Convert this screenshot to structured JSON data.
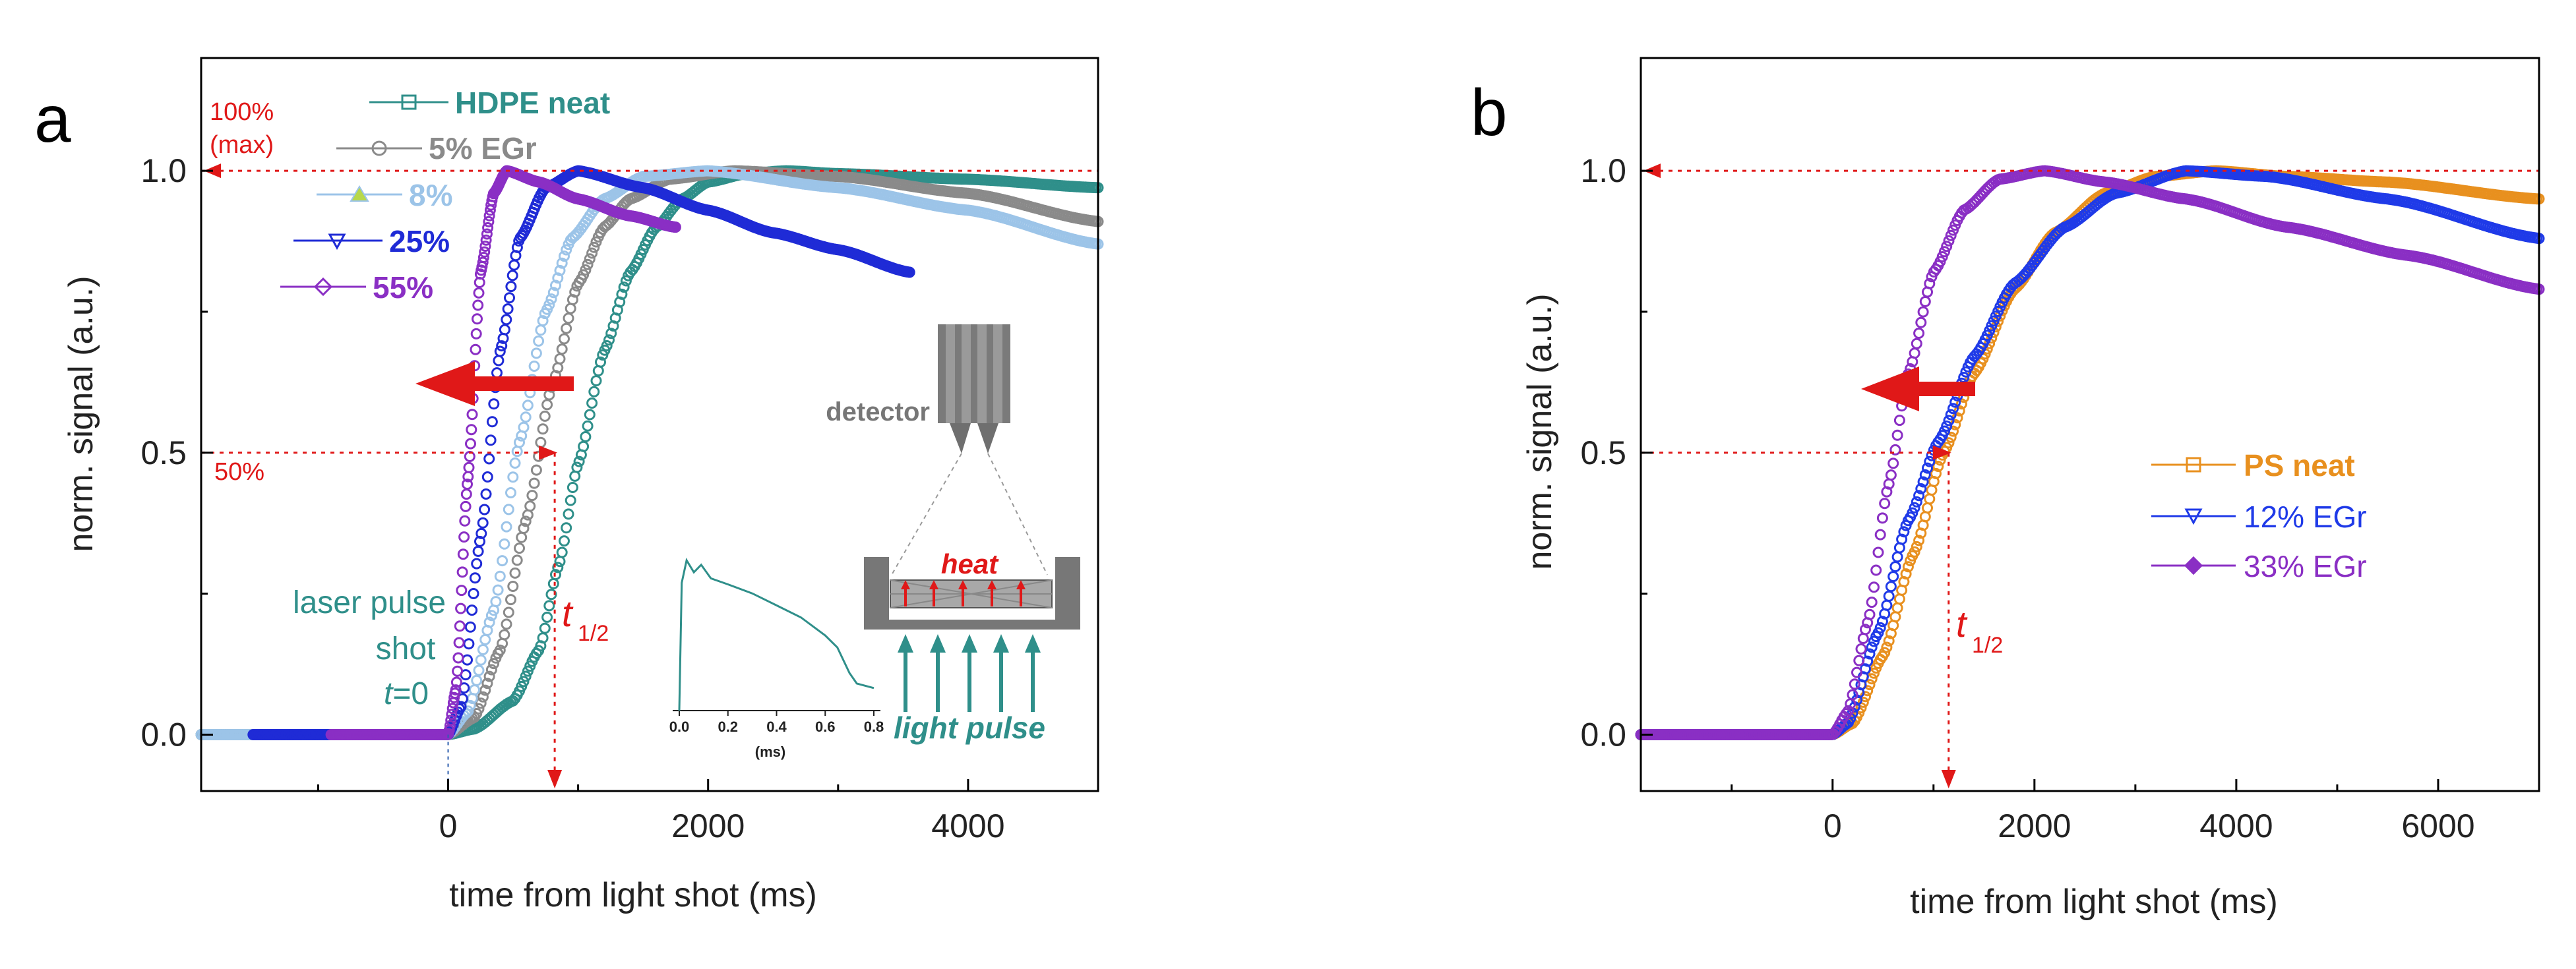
{
  "figure": {
    "panel_a_letter": "a",
    "panel_b_letter": "b"
  },
  "colors": {
    "hdpe_neat": "#2f8f8a",
    "egr5": "#8a8a8a",
    "egr8": "#9cc4e8",
    "egr25": "#1f2bd6",
    "egr55": "#8a2fc4",
    "ps_neat": "#e8901f",
    "egr12": "#1f3ae8",
    "egr33": "#8a2fc4",
    "annotation_red": "#e01818",
    "laser_text": "#2f8f8a",
    "egr8_marker": "#b8d84a"
  },
  "chart_data": [
    {
      "panel": "a",
      "type": "scatter",
      "xlabel": "time from light shot (ms)",
      "ylabel": "norm. signal (a.u.)",
      "xlim": [
        -1900,
        5000
      ],
      "ylim": [
        -0.1,
        1.2
      ],
      "xticks": [
        0,
        2000,
        4000
      ],
      "xtick_labels": [
        "0",
        "2000",
        "4000"
      ],
      "yticks": [
        0.0,
        0.5,
        1.0
      ],
      "ytick_labels": [
        "0.0",
        "0.5",
        "1.0"
      ],
      "legend": [
        {
          "label": "HDPE neat",
          "marker": "square",
          "color_key": "hdpe_neat"
        },
        {
          "label": "5% EGr",
          "marker": "circle",
          "color_key": "egr5"
        },
        {
          "label": "8%",
          "marker": "triangle-up",
          "color_key": "egr8"
        },
        {
          "label": "25%",
          "marker": "triangle-down",
          "color_key": "egr25"
        },
        {
          "label": "55%",
          "marker": "diamond",
          "color_key": "egr55"
        }
      ],
      "series": [
        {
          "name": "HDPE neat",
          "color_key": "hdpe_neat",
          "x_start": -1900,
          "x_end": 5000,
          "points": [
            [
              -1900,
              0
            ],
            [
              0,
              0
            ],
            [
              200,
              0.01
            ],
            [
              500,
              0.06
            ],
            [
              700,
              0.15
            ],
            [
              850,
              0.3
            ],
            [
              1000,
              0.48
            ],
            [
              1200,
              0.68
            ],
            [
              1400,
              0.82
            ],
            [
              1600,
              0.9
            ],
            [
              1800,
              0.95
            ],
            [
              2000,
              0.98
            ],
            [
              2300,
              0.995
            ],
            [
              2600,
              1.0
            ],
            [
              3000,
              0.995
            ],
            [
              4000,
              0.985
            ],
            [
              5000,
              0.97
            ]
          ]
        },
        {
          "name": "5% EGr",
          "color_key": "egr5",
          "x_start": -1900,
          "x_end": 5000,
          "points": [
            [
              -1900,
              0
            ],
            [
              0,
              0
            ],
            [
              200,
              0.03
            ],
            [
              400,
              0.15
            ],
            [
              600,
              0.38
            ],
            [
              800,
              0.62
            ],
            [
              1000,
              0.8
            ],
            [
              1200,
              0.9
            ],
            [
              1400,
              0.95
            ],
            [
              1700,
              0.985
            ],
            [
              2200,
              1.0
            ],
            [
              3000,
              0.99
            ],
            [
              4000,
              0.96
            ],
            [
              5000,
              0.91
            ]
          ]
        },
        {
          "name": "8%",
          "color_key": "egr8",
          "x_start": -1900,
          "x_end": 5000,
          "points": [
            [
              -1900,
              0
            ],
            [
              0,
              0
            ],
            [
              150,
              0.04
            ],
            [
              350,
              0.22
            ],
            [
              550,
              0.52
            ],
            [
              750,
              0.75
            ],
            [
              950,
              0.88
            ],
            [
              1200,
              0.95
            ],
            [
              1500,
              0.99
            ],
            [
              2000,
              1.0
            ],
            [
              3000,
              0.97
            ],
            [
              4000,
              0.93
            ],
            [
              5000,
              0.87
            ]
          ]
        },
        {
          "name": "25%",
          "color_key": "egr25",
          "x_start": -1500,
          "x_end": 3550,
          "points": [
            [
              -1500,
              0
            ],
            [
              0,
              0
            ],
            [
              100,
              0.05
            ],
            [
              250,
              0.35
            ],
            [
              400,
              0.68
            ],
            [
              550,
              0.88
            ],
            [
              750,
              0.97
            ],
            [
              1000,
              1.0
            ],
            [
              1500,
              0.97
            ],
            [
              2000,
              0.93
            ],
            [
              2500,
              0.89
            ],
            [
              3000,
              0.86
            ],
            [
              3550,
              0.82
            ]
          ]
        },
        {
          "name": "55%",
          "color_key": "egr55",
          "x_start": -900,
          "x_end": 1750,
          "points": [
            [
              -900,
              0
            ],
            [
              0,
              0
            ],
            [
              60,
              0.08
            ],
            [
              150,
              0.45
            ],
            [
              250,
              0.82
            ],
            [
              350,
              0.96
            ],
            [
              450,
              1.0
            ],
            [
              700,
              0.98
            ],
            [
              1000,
              0.95
            ],
            [
              1400,
              0.92
            ],
            [
              1750,
              0.9
            ]
          ]
        }
      ],
      "annotations": {
        "pct100_line1": "100%",
        "pct100_line2": "(max)",
        "pct50": "50%",
        "laser_line1": "laser pulse",
        "laser_line2": "shot",
        "laser_t": "t",
        "laser_eq": "=0",
        "t_half_main": "t",
        "t_half_sub": "1/2",
        "t_half_x": 820
      },
      "inset_plot": {
        "type": "line",
        "xlabel": "(ms)",
        "xticks": [
          "0.0",
          "0.2",
          "0.4",
          "0.6",
          "0.8"
        ],
        "points": [
          [
            0.0,
            0.0
          ],
          [
            0.01,
            0.85
          ],
          [
            0.03,
            1.0
          ],
          [
            0.06,
            0.92
          ],
          [
            0.09,
            0.97
          ],
          [
            0.13,
            0.88
          ],
          [
            0.2,
            0.84
          ],
          [
            0.3,
            0.78
          ],
          [
            0.4,
            0.7
          ],
          [
            0.5,
            0.62
          ],
          [
            0.6,
            0.5
          ],
          [
            0.65,
            0.42
          ],
          [
            0.7,
            0.25
          ],
          [
            0.73,
            0.18
          ],
          [
            0.8,
            0.15
          ]
        ]
      },
      "schematic": {
        "detector_label": "detector",
        "heat_label": "heat",
        "light_pulse_label": "light pulse"
      }
    },
    {
      "panel": "b",
      "type": "scatter",
      "xlabel": "time from light shot (ms)",
      "ylabel": "norm. signal (a.u.)",
      "xlim": [
        -1900,
        7000
      ],
      "ylim": [
        -0.1,
        1.2
      ],
      "xticks": [
        0,
        2000,
        4000,
        6000
      ],
      "xtick_labels": [
        "0",
        "2000",
        "4000",
        "6000"
      ],
      "yticks": [
        0.0,
        0.5,
        1.0
      ],
      "ytick_labels": [
        "0.0",
        "0.5",
        "1.0"
      ],
      "legend": [
        {
          "label": "PS neat",
          "marker": "square",
          "color_key": "ps_neat"
        },
        {
          "label": "12% EGr",
          "marker": "triangle-down",
          "color_key": "egr12"
        },
        {
          "label": "33% EGr",
          "marker": "diamond",
          "color_key": "egr33"
        }
      ],
      "series": [
        {
          "name": "PS neat",
          "color_key": "ps_neat",
          "x_start": -1900,
          "x_end": 7000,
          "points": [
            [
              -1900,
              0
            ],
            [
              0,
              0
            ],
            [
              200,
              0.02
            ],
            [
              500,
              0.14
            ],
            [
              800,
              0.32
            ],
            [
              1100,
              0.5
            ],
            [
              1400,
              0.64
            ],
            [
              1800,
              0.79
            ],
            [
              2200,
              0.89
            ],
            [
              2700,
              0.96
            ],
            [
              3200,
              0.99
            ],
            [
              3800,
              1.0
            ],
            [
              4500,
              0.99
            ],
            [
              5500,
              0.98
            ],
            [
              7000,
              0.95
            ]
          ]
        },
        {
          "name": "12% EGr",
          "color_key": "egr12",
          "x_start": -1900,
          "x_end": 7000,
          "points": [
            [
              -1900,
              0
            ],
            [
              0,
              0
            ],
            [
              150,
              0.02
            ],
            [
              450,
              0.18
            ],
            [
              750,
              0.38
            ],
            [
              1050,
              0.52
            ],
            [
              1400,
              0.67
            ],
            [
              1800,
              0.8
            ],
            [
              2300,
              0.9
            ],
            [
              2800,
              0.96
            ],
            [
              3500,
              1.0
            ],
            [
              4300,
              0.99
            ],
            [
              5500,
              0.95
            ],
            [
              7000,
              0.88
            ]
          ]
        },
        {
          "name": "33% EGr",
          "color_key": "egr33",
          "x_start": -1900,
          "x_end": 7000,
          "points": [
            [
              -1900,
              0
            ],
            [
              0,
              0
            ],
            [
              150,
              0.04
            ],
            [
              350,
              0.2
            ],
            [
              550,
              0.44
            ],
            [
              750,
              0.64
            ],
            [
              1000,
              0.82
            ],
            [
              1300,
              0.93
            ],
            [
              1650,
              0.985
            ],
            [
              2100,
              1.0
            ],
            [
              2700,
              0.98
            ],
            [
              3500,
              0.95
            ],
            [
              4500,
              0.9
            ],
            [
              5700,
              0.85
            ],
            [
              7000,
              0.79
            ]
          ]
        }
      ],
      "annotations": {
        "t_half_main": "t",
        "t_half_sub": "1/2",
        "t_half_x": 1150
      }
    }
  ]
}
